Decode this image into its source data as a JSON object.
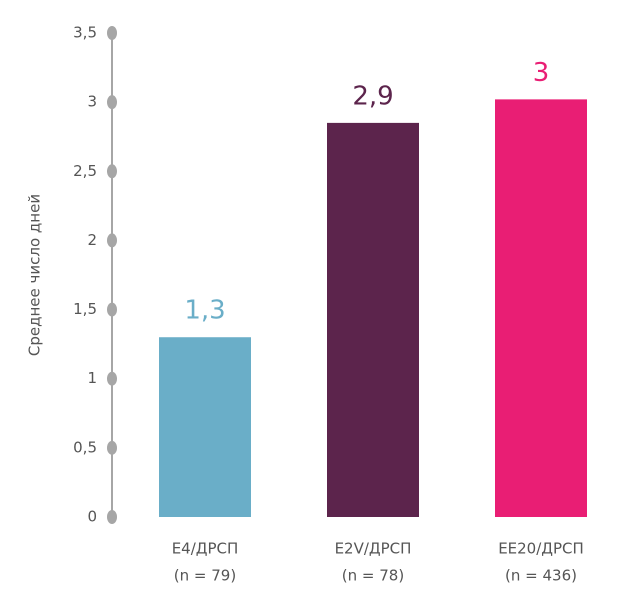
{
  "chart_data": {
    "type": "bar",
    "y_label": "Среднее число дней",
    "categories": [
      "E4/ДРСП",
      "E2V/ДРСП",
      "EE20/ДРСП"
    ],
    "category_sublabels": [
      "(n = 79)",
      "(n = 78)",
      "(n = 436)"
    ],
    "values": [
      1.3,
      2.85,
      3.02
    ],
    "value_labels": [
      "1,3",
      "2,9",
      "3"
    ],
    "colors": [
      "#6aaec8",
      "#5c244c",
      "#e91e74"
    ],
    "ylim": [
      0,
      3.5
    ],
    "yticks": [
      0,
      {
        "value": 0.5,
        "label": "0,5"
      },
      1,
      {
        "value": 1.5,
        "label": "1,5"
      },
      2,
      {
        "value": 2.5,
        "label": "2,5"
      },
      3,
      {
        "value": 3.5,
        "label": "3,5"
      }
    ]
  }
}
